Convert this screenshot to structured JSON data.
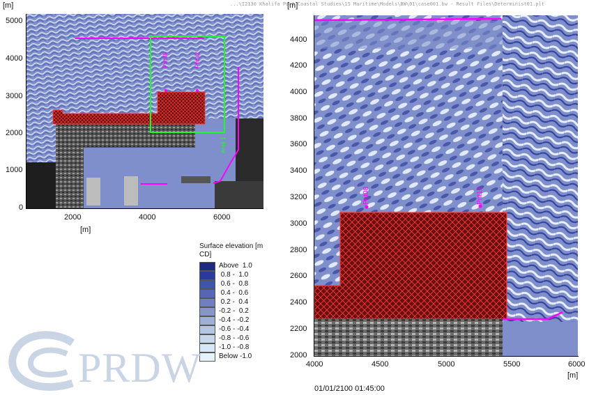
{
  "window_title_path": "...\\I2130 Khalifa Port Coastal Studies\\15 Maritime\\Models\\BW\\01\\case001.bw - Result Files\\Determinist01.plt",
  "left_map": {
    "unit_top": "[m]",
    "unit_bottom": "[m]",
    "yticks": [
      "5000",
      "4000",
      "3000",
      "2000",
      "1000",
      "0"
    ],
    "xticks": [
      "2000",
      "4000",
      "6000"
    ],
    "point_labels": [
      "Pnt08",
      "Pnt12"
    ],
    "area_label": "Area 1"
  },
  "right_map": {
    "unit_top": "[m]",
    "unit_bottom": "[m]",
    "yticks": [
      "4400",
      "4200",
      "4000",
      "3800",
      "3600",
      "3400",
      "3200",
      "3000",
      "2800",
      "2600",
      "2400",
      "2200",
      "2000"
    ],
    "xticks": [
      "4000",
      "4500",
      "5000",
      "5500",
      "6000"
    ],
    "point_labels": [
      "Pnt08",
      "Pnt12"
    ],
    "timestamp": "01/01/2100 01:45:00"
  },
  "legend": {
    "title": "Surface elevation [m CD]",
    "items": [
      {
        "label": "Above  1.0",
        "color": "#1f2a7e"
      },
      {
        "label": " 0.8 -  1.0",
        "color": "#2b3a9a"
      },
      {
        "label": " 0.6 -  0.8",
        "color": "#3f52ad"
      },
      {
        "label": " 0.4 -  0.6",
        "color": "#5566b6"
      },
      {
        "label": " 0.2 -  0.4",
        "color": "#6f80c1"
      },
      {
        "label": "-0.2 -  0.2",
        "color": "#8696cb"
      },
      {
        "label": "-0.4 - -0.2",
        "color": "#9fb0d7"
      },
      {
        "label": "-0.6 - -0.4",
        "color": "#b4c6e2"
      },
      {
        "label": "-0.8 - -0.6",
        "color": "#c6d8ec"
      },
      {
        "label": "-1.0 - -0.8",
        "color": "#d6e7f5"
      },
      {
        "label": "Below -1.0",
        "color": "#e6f3fb"
      }
    ]
  },
  "logo": {
    "text": "PRDW",
    "color": "#c9d4e4"
  },
  "colors": {
    "sea_base": "#7f8fcb",
    "wave_light": "#dfe8f7",
    "wave_dark": "#3c4aa0",
    "reclamation": "#6a0f0f",
    "hatch": "#ff3b3b",
    "magenta": "#ff00ff",
    "green_box": "#19ff19"
  }
}
